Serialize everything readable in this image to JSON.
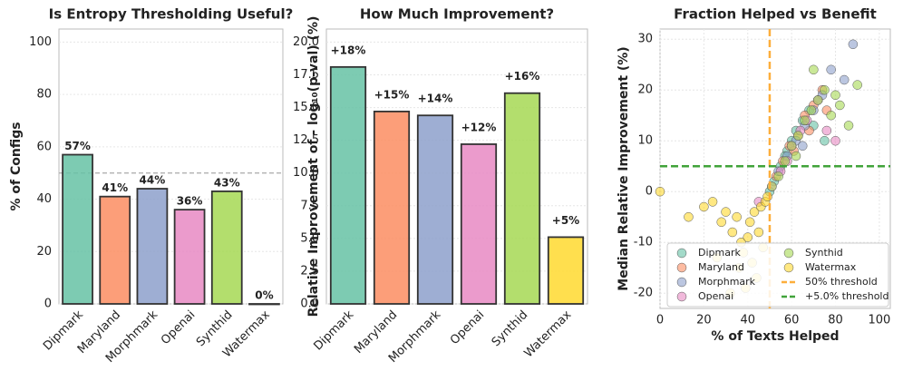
{
  "chart_data": [
    {
      "type": "bar",
      "title": "Is Entropy Thresholding Useful?",
      "ylabel": "% of Configs",
      "categories": [
        "Dipmark",
        "Maryland",
        "Morphmark",
        "Openai",
        "Synthid",
        "Watermax"
      ],
      "values": [
        57,
        41,
        44,
        36,
        43,
        0
      ],
      "value_labels": [
        "57%",
        "41%",
        "44%",
        "36%",
        "43%",
        "0%"
      ],
      "colors": [
        "#66c2a5",
        "#fc8d62",
        "#8da0cb",
        "#e78ac3",
        "#a6d854",
        "#ffd92f"
      ],
      "ylim": [
        0,
        105
      ],
      "yticks": [
        0,
        20,
        40,
        60,
        80,
        100
      ],
      "grid": true,
      "reference_lines": [
        {
          "axis": "y",
          "value": 50,
          "color": "#aaaaaa"
        }
      ]
    },
    {
      "type": "bar",
      "title": "How Much Improvement?",
      "ylabel": "Relative Improvement of - log₁₀(p-val) (%)",
      "categories": [
        "Dipmark",
        "Maryland",
        "Morphmark",
        "Openai",
        "Synthid",
        "Watermax"
      ],
      "values": [
        18.1,
        14.7,
        14.4,
        12.2,
        16.1,
        5.1
      ],
      "value_labels": [
        "+18%",
        "+15%",
        "+14%",
        "+12%",
        "+16%",
        "+5%"
      ],
      "colors": [
        "#66c2a5",
        "#fc8d62",
        "#8da0cb",
        "#e78ac3",
        "#a6d854",
        "#ffd92f"
      ],
      "ylim": [
        0,
        21
      ],
      "yticks": [
        {
          "value": 0,
          "label": "0.0"
        },
        {
          "value": 2.5,
          "label": "2.5"
        },
        {
          "value": 5,
          "label": "5.0"
        },
        {
          "value": 7.5,
          "label": "7.5"
        },
        {
          "value": 10,
          "label": "10.0"
        },
        {
          "value": 12.5,
          "label": "12.5"
        },
        {
          "value": 15,
          "label": "15.0"
        },
        {
          "value": 17.5,
          "label": "17.5"
        },
        {
          "value": 20,
          "label": "20.0"
        }
      ],
      "grid": true
    },
    {
      "type": "scatter",
      "title": "Fraction Helped vs Benefit",
      "xlabel": "% of Texts Helped",
      "ylabel": "Median Relative Improvement (%)",
      "xlim": [
        0,
        105
      ],
      "ylim": [
        -23,
        32
      ],
      "xticks": [
        0,
        20,
        40,
        60,
        80,
        100
      ],
      "yticks": [
        -20,
        -10,
        0,
        10,
        20,
        30
      ],
      "grid": true,
      "legend": "lower right",
      "series": [
        {
          "name": "Dipmark",
          "color": "#66c2a5",
          "x": [
            52,
            55,
            58,
            60,
            62,
            65,
            68,
            70,
            72,
            75,
            50,
            57
          ],
          "y": [
            2,
            5,
            8,
            10,
            12,
            14,
            16,
            13,
            18,
            10,
            0,
            7
          ]
        },
        {
          "name": "Maryland",
          "color": "#fc8d62",
          "x": [
            53,
            56,
            59,
            63,
            66,
            70,
            74,
            61,
            68,
            76
          ],
          "y": [
            3,
            6,
            9,
            11,
            15,
            17,
            20,
            8,
            12,
            16
          ]
        },
        {
          "name": "Morphmark",
          "color": "#8da0cb",
          "x": [
            54,
            58,
            62,
            66,
            70,
            74,
            78,
            84,
            88,
            65
          ],
          "y": [
            4,
            7,
            10,
            13,
            16,
            19,
            24,
            22,
            29,
            9
          ]
        },
        {
          "name": "Openai",
          "color": "#e78ac3",
          "x": [
            51,
            55,
            60,
            64,
            67,
            72,
            76,
            80,
            45,
            58
          ],
          "y": [
            1,
            4,
            9,
            12,
            14,
            18,
            12,
            10,
            -2,
            6
          ]
        },
        {
          "name": "Synthid",
          "color": "#a6d854",
          "x": [
            51,
            54,
            57,
            60,
            63,
            66,
            69,
            72,
            75,
            78,
            82,
            86,
            90,
            70,
            80,
            62
          ],
          "y": [
            1,
            3,
            6,
            9,
            11,
            14,
            16,
            18,
            20,
            15,
            17,
            13,
            21,
            24,
            19,
            7
          ]
        },
        {
          "name": "Watermax",
          "color": "#ffd92f",
          "x": [
            0,
            13,
            20,
            24,
            28,
            30,
            33,
            35,
            37,
            38,
            40,
            41,
            42,
            43,
            44,
            45,
            46,
            47,
            48,
            49,
            36,
            32,
            26,
            39
          ],
          "y": [
            0,
            -5,
            -3,
            -2,
            -6,
            -4,
            -8,
            -5,
            -10,
            -12,
            -9,
            -6,
            -14,
            -4,
            -17,
            -8,
            -3,
            -11,
            -2,
            -1,
            -15,
            -20,
            -13,
            -19
          ]
        }
      ],
      "reference_lines": [
        {
          "axis": "x",
          "value": 50,
          "color": "#fdae3b",
          "label": "50% threshold"
        },
        {
          "axis": "y",
          "value": 5,
          "color": "#41a33a",
          "label": "+5.0% threshold"
        }
      ]
    }
  ]
}
